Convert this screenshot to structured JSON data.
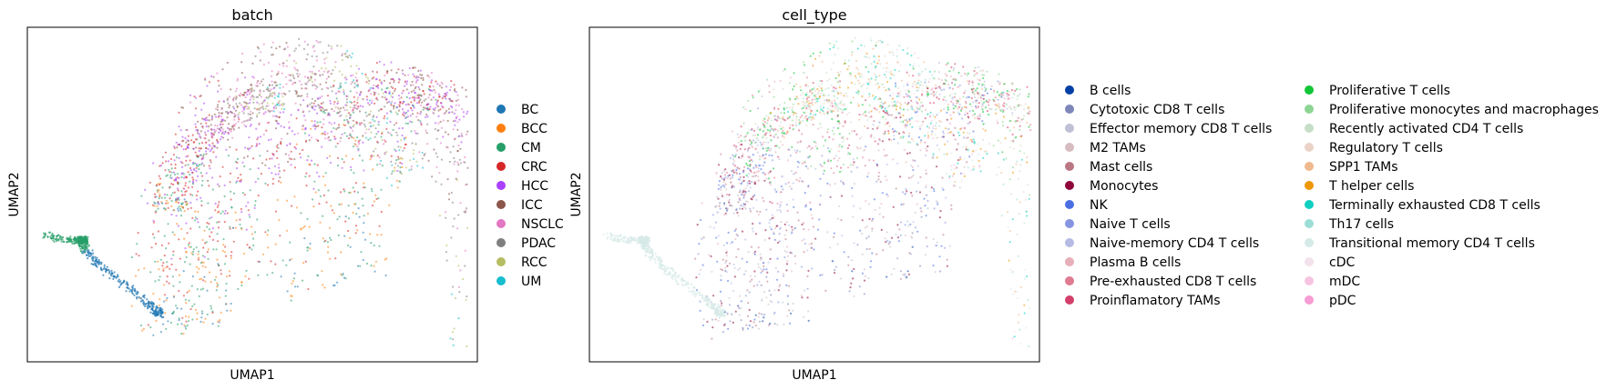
{
  "chart_data": [
    {
      "type": "scatter",
      "title": "batch",
      "xlabel": "UMAP1",
      "ylabel": "UMAP2",
      "grid": false,
      "legend_position": "right",
      "categories": [
        "BC",
        "BCC",
        "CM",
        "CRC",
        "HCC",
        "ICC",
        "NSCLC",
        "PDAC",
        "RCC",
        "UM"
      ],
      "colors": [
        "#1f77b4",
        "#ff7f0e",
        "#279e68",
        "#d62728",
        "#aa40fc",
        "#8c564b",
        "#e377c2",
        "#7f7f7f",
        "#b5bd61",
        "#17becf"
      ]
    },
    {
      "type": "scatter",
      "title": "cell_type",
      "xlabel": "UMAP1",
      "ylabel": "UMAP2",
      "grid": false,
      "legend_position": "right",
      "categories": [
        "B cells",
        "Cytotoxic CD8 T cells",
        "Effector memory CD8 T cells",
        "M2 TAMs",
        "Mast cells",
        "Monocytes",
        "NK",
        "Naive T cells",
        "Naive-memory CD4 T cells",
        "Plasma B cells",
        "Pre-exhausted CD8 T cells",
        "Proinflamatory TAMs",
        "Proliferative T cells",
        "Proliferative monocytes and macrophages",
        "Recently activated CD4 T cells",
        "Regulatory T cells",
        "SPP1 TAMs",
        "T helper cells",
        "Terminally exhausted CD8 T cells",
        "Th17 cells",
        "Transitional memory CD4 T cells",
        "cDC",
        "mDC",
        "pDC"
      ],
      "colors": [
        "#023fa5",
        "#7d87b9",
        "#bec1d4",
        "#d6bcc0",
        "#bb7784",
        "#8e063b",
        "#4a6fe3",
        "#8595e1",
        "#b5bbe3",
        "#e6afb9",
        "#e07b91",
        "#d33f6a",
        "#11c638",
        "#8dd593",
        "#c6dec7",
        "#ead3c6",
        "#f0b98d",
        "#ef9708",
        "#0fcfc0",
        "#9cded6",
        "#d5eae7",
        "#f3e1eb",
        "#f6c4e1",
        "#f79cd4"
      ]
    }
  ]
}
